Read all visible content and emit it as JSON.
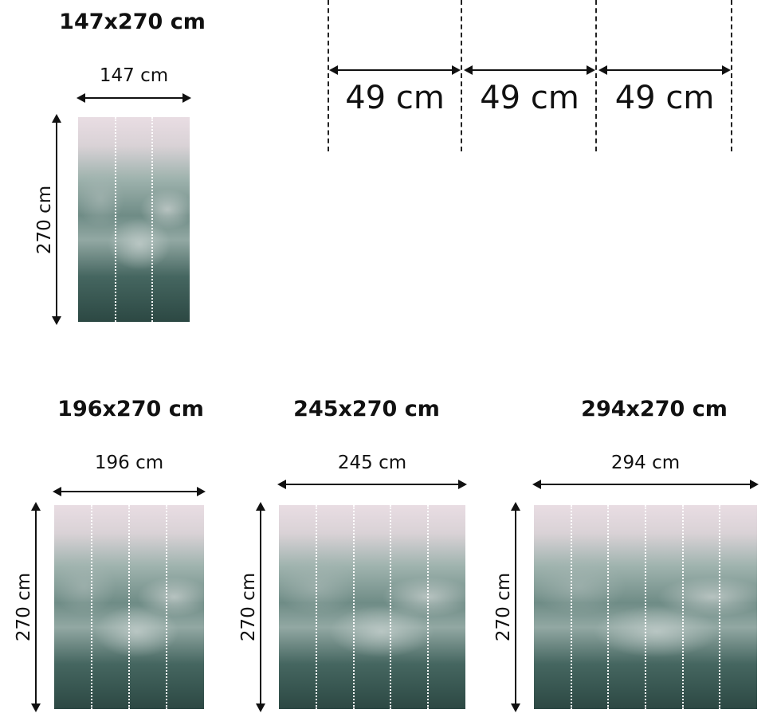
{
  "colors": {
    "line": "#111111",
    "sky": "#e9dde3",
    "forest_dark": "#2c4843",
    "panel_divider": "#ffffff"
  },
  "panel_width": {
    "label": "49 cm",
    "count": 3
  },
  "variants": [
    {
      "title": "147x270 cm",
      "width_label": "147 cm",
      "height_label": "270 cm",
      "panels": 3
    },
    {
      "title": "196x270 cm",
      "width_label": "196 cm",
      "height_label": "270 cm",
      "panels": 4
    },
    {
      "title": "245x270 cm",
      "width_label": "245 cm",
      "height_label": "270 cm",
      "panels": 5
    },
    {
      "title": "294x270 cm",
      "width_label": "294 cm",
      "height_label": "270 cm",
      "panels": 6
    }
  ]
}
